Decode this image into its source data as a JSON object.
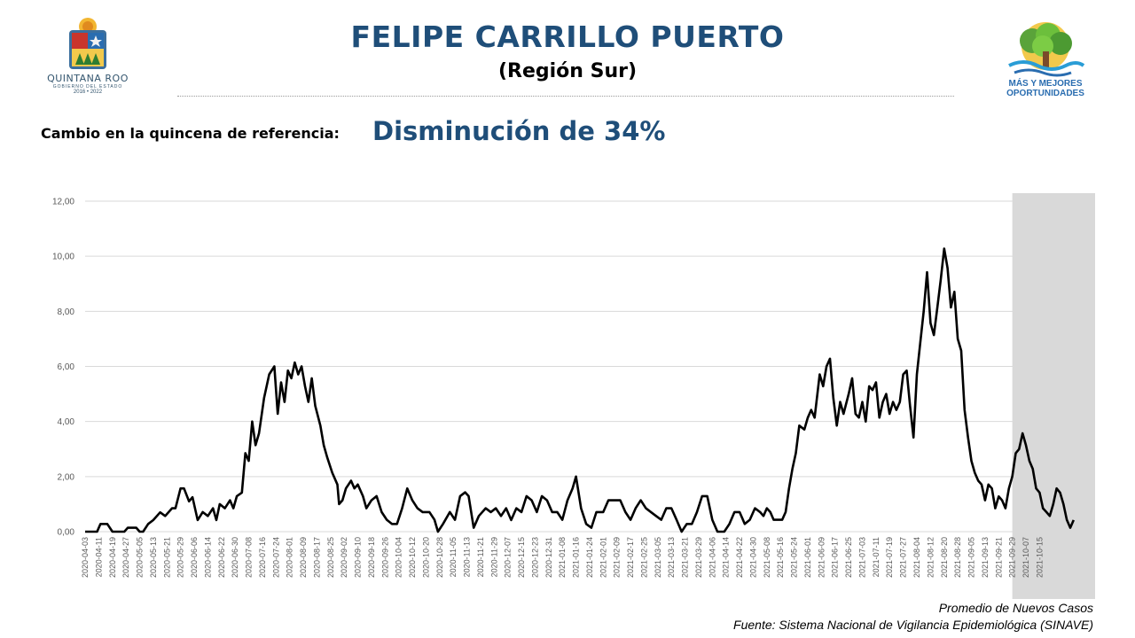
{
  "header": {
    "title": "FELIPE CARRILLO PUERTO",
    "subtitle": "(Región Sur)",
    "logo_left": {
      "name": "QUINTANA ROO",
      "line2": "GOBIERNO DEL ESTADO",
      "years": "2016 • 2022"
    },
    "logo_right": {
      "line1": "MÁS Y MEJORES",
      "line2": "OPORTUNIDADES"
    }
  },
  "summary": {
    "label": "Cambio en la quincena de referencia:",
    "value": "Disminución de 34%"
  },
  "footer": {
    "line1": "Promedio de Nuevos Casos",
    "line2": "Fuente: Sistema Nacional de Vigilancia Epidemiológica (SINAVE)"
  },
  "colors": {
    "title": "#1f4e79",
    "line": "#000000",
    "shade": "#d9d9d9",
    "grid": "#d9d9d9"
  },
  "chart_data": {
    "type": "line",
    "x_start": "2020-04-03",
    "x_end": "2021-10-20",
    "shaded_from": "2021-09-29",
    "ylim": [
      0,
      12
    ],
    "yticks": [
      "0,00",
      "2,00",
      "4,00",
      "6,00",
      "8,00",
      "10,00",
      "12,00"
    ],
    "xtick_labels": [
      "2020-04-03",
      "2020-04-11",
      "2020-04-19",
      "2020-04-27",
      "2020-05-05",
      "2020-05-13",
      "2020-05-21",
      "2020-05-29",
      "2020-06-06",
      "2020-06-14",
      "2020-06-22",
      "2020-06-30",
      "2020-07-08",
      "2020-07-16",
      "2020-07-24",
      "2020-08-01",
      "2020-08-09",
      "2020-08-17",
      "2020-08-25",
      "2020-09-02",
      "2020-09-10",
      "2020-09-18",
      "2020-09-26",
      "2020-10-04",
      "2020-10-12",
      "2020-10-20",
      "2020-10-28",
      "2020-11-05",
      "2020-11-13",
      "2020-11-21",
      "2020-11-29",
      "2020-12-07",
      "2020-12-15",
      "2020-12-23",
      "2020-12-31",
      "2021-01-08",
      "2021-01-16",
      "2021-01-24",
      "2021-02-01",
      "2021-02-09",
      "2021-02-17",
      "2021-02-25",
      "2021-03-05",
      "2021-03-13",
      "2021-03-21",
      "2021-03-29",
      "2021-04-06",
      "2021-04-14",
      "2021-04-22",
      "2021-04-30",
      "2021-05-08",
      "2021-05-16",
      "2021-05-24",
      "2021-06-01",
      "2021-06-09",
      "2021-06-17",
      "2021-06-25",
      "2021-07-03",
      "2021-07-11",
      "2021-07-19",
      "2021-07-27",
      "2021-08-04",
      "2021-08-12",
      "2021-08-20",
      "2021-08-28",
      "2021-09-05",
      "2021-09-13",
      "2021-09-21",
      "2021-09-29",
      "2021-10-07",
      "2021-10-15"
    ],
    "series": [
      {
        "points": [
          [
            "2020-04-03",
            0.0
          ],
          [
            "2020-04-10",
            0.0
          ],
          [
            "2020-04-12",
            0.28
          ],
          [
            "2020-04-16",
            0.28
          ],
          [
            "2020-04-19",
            0.0
          ],
          [
            "2020-04-26",
            0.0
          ],
          [
            "2020-04-28",
            0.14
          ],
          [
            "2020-05-03",
            0.14
          ],
          [
            "2020-05-05",
            0.0
          ],
          [
            "2020-05-07",
            0.0
          ],
          [
            "2020-05-10",
            0.28
          ],
          [
            "2020-05-13",
            0.42
          ],
          [
            "2020-05-17",
            0.7
          ],
          [
            "2020-05-20",
            0.57
          ],
          [
            "2020-05-24",
            0.85
          ],
          [
            "2020-05-26",
            0.85
          ],
          [
            "2020-05-29",
            1.57
          ],
          [
            "2020-05-31",
            1.57
          ],
          [
            "2020-06-03",
            1.1
          ],
          [
            "2020-06-05",
            1.25
          ],
          [
            "2020-06-08",
            0.42
          ],
          [
            "2020-06-11",
            0.71
          ],
          [
            "2020-06-14",
            0.57
          ],
          [
            "2020-06-17",
            0.85
          ],
          [
            "2020-06-19",
            0.42
          ],
          [
            "2020-06-21",
            1.0
          ],
          [
            "2020-06-24",
            0.85
          ],
          [
            "2020-06-27",
            1.14
          ],
          [
            "2020-06-29",
            0.85
          ],
          [
            "2020-07-01",
            1.29
          ],
          [
            "2020-07-04",
            1.42
          ],
          [
            "2020-07-06",
            2.85
          ],
          [
            "2020-07-08",
            2.57
          ],
          [
            "2020-07-10",
            4.0
          ],
          [
            "2020-07-12",
            3.14
          ],
          [
            "2020-07-14",
            3.57
          ],
          [
            "2020-07-17",
            4.85
          ],
          [
            "2020-07-20",
            5.71
          ],
          [
            "2020-07-23",
            6.0
          ],
          [
            "2020-07-25",
            4.28
          ],
          [
            "2020-07-27",
            5.42
          ],
          [
            "2020-07-29",
            4.71
          ],
          [
            "2020-07-31",
            5.85
          ],
          [
            "2020-08-02",
            5.57
          ],
          [
            "2020-08-04",
            6.14
          ],
          [
            "2020-08-06",
            5.71
          ],
          [
            "2020-08-08",
            6.0
          ],
          [
            "2020-08-10",
            5.28
          ],
          [
            "2020-08-12",
            4.71
          ],
          [
            "2020-08-14",
            5.57
          ],
          [
            "2020-08-16",
            4.57
          ],
          [
            "2020-08-19",
            3.85
          ],
          [
            "2020-08-21",
            3.14
          ],
          [
            "2020-08-23",
            2.71
          ],
          [
            "2020-08-26",
            2.14
          ],
          [
            "2020-08-29",
            1.71
          ],
          [
            "2020-08-30",
            1.0
          ],
          [
            "2020-09-01",
            1.14
          ],
          [
            "2020-09-03",
            1.57
          ],
          [
            "2020-09-06",
            1.85
          ],
          [
            "2020-09-08",
            1.57
          ],
          [
            "2020-09-10",
            1.71
          ],
          [
            "2020-09-13",
            1.29
          ],
          [
            "2020-09-15",
            0.85
          ],
          [
            "2020-09-18",
            1.14
          ],
          [
            "2020-09-21",
            1.29
          ],
          [
            "2020-09-24",
            0.71
          ],
          [
            "2020-09-27",
            0.43
          ],
          [
            "2020-09-30",
            0.28
          ],
          [
            "2020-10-03",
            0.28
          ],
          [
            "2020-10-06",
            0.85
          ],
          [
            "2020-10-09",
            1.57
          ],
          [
            "2020-10-12",
            1.14
          ],
          [
            "2020-10-15",
            0.85
          ],
          [
            "2020-10-18",
            0.71
          ],
          [
            "2020-10-22",
            0.71
          ],
          [
            "2020-10-25",
            0.43
          ],
          [
            "2020-10-27",
            0.0
          ],
          [
            "2020-10-30",
            0.28
          ],
          [
            "2020-11-03",
            0.71
          ],
          [
            "2020-11-06",
            0.43
          ],
          [
            "2020-11-09",
            1.29
          ],
          [
            "2020-11-12",
            1.43
          ],
          [
            "2020-11-14",
            1.29
          ],
          [
            "2020-11-17",
            0.14
          ],
          [
            "2020-11-20",
            0.57
          ],
          [
            "2020-11-24",
            0.85
          ],
          [
            "2020-11-27",
            0.71
          ],
          [
            "2020-11-30",
            0.85
          ],
          [
            "2020-12-03",
            0.57
          ],
          [
            "2020-12-06",
            0.85
          ],
          [
            "2020-12-09",
            0.42
          ],
          [
            "2020-12-12",
            0.85
          ],
          [
            "2020-12-15",
            0.71
          ],
          [
            "2020-12-18",
            1.29
          ],
          [
            "2020-12-21",
            1.14
          ],
          [
            "2020-12-24",
            0.71
          ],
          [
            "2020-12-27",
            1.29
          ],
          [
            "2020-12-30",
            1.14
          ],
          [
            "2021-01-02",
            0.71
          ],
          [
            "2021-01-05",
            0.71
          ],
          [
            "2021-01-08",
            0.43
          ],
          [
            "2021-01-11",
            1.14
          ],
          [
            "2021-01-14",
            1.57
          ],
          [
            "2021-01-16",
            2.0
          ],
          [
            "2021-01-19",
            0.85
          ],
          [
            "2021-01-22",
            0.28
          ],
          [
            "2021-01-25",
            0.14
          ],
          [
            "2021-01-28",
            0.71
          ],
          [
            "2021-02-01",
            0.71
          ],
          [
            "2021-02-04",
            1.14
          ],
          [
            "2021-02-07",
            1.14
          ],
          [
            "2021-02-11",
            1.14
          ],
          [
            "2021-02-14",
            0.71
          ],
          [
            "2021-02-17",
            0.43
          ],
          [
            "2021-02-20",
            0.85
          ],
          [
            "2021-02-23",
            1.14
          ],
          [
            "2021-02-26",
            0.85
          ],
          [
            "2021-03-01",
            0.71
          ],
          [
            "2021-03-04",
            0.57
          ],
          [
            "2021-03-07",
            0.43
          ],
          [
            "2021-03-10",
            0.85
          ],
          [
            "2021-03-13",
            0.85
          ],
          [
            "2021-03-16",
            0.43
          ],
          [
            "2021-03-19",
            0.0
          ],
          [
            "2021-03-22",
            0.28
          ],
          [
            "2021-03-25",
            0.28
          ],
          [
            "2021-03-28",
            0.71
          ],
          [
            "2021-03-31",
            1.29
          ],
          [
            "2021-04-03",
            1.29
          ],
          [
            "2021-04-06",
            0.43
          ],
          [
            "2021-04-09",
            0.0
          ],
          [
            "2021-04-13",
            0.0
          ],
          [
            "2021-04-16",
            0.28
          ],
          [
            "2021-04-19",
            0.71
          ],
          [
            "2021-04-22",
            0.71
          ],
          [
            "2021-04-25",
            0.28
          ],
          [
            "2021-04-28",
            0.43
          ],
          [
            "2021-05-01",
            0.85
          ],
          [
            "2021-05-04",
            0.71
          ],
          [
            "2021-05-06",
            0.57
          ],
          [
            "2021-05-08",
            0.85
          ],
          [
            "2021-05-10",
            0.71
          ],
          [
            "2021-05-12",
            0.43
          ],
          [
            "2021-05-17",
            0.43
          ],
          [
            "2021-05-19",
            0.71
          ],
          [
            "2021-05-21",
            1.57
          ],
          [
            "2021-05-23",
            2.29
          ],
          [
            "2021-05-25",
            2.85
          ],
          [
            "2021-05-27",
            3.85
          ],
          [
            "2021-05-30",
            3.71
          ],
          [
            "2021-06-01",
            4.14
          ],
          [
            "2021-06-03",
            4.42
          ],
          [
            "2021-06-05",
            4.14
          ],
          [
            "2021-06-08",
            5.71
          ],
          [
            "2021-06-10",
            5.28
          ],
          [
            "2021-06-12",
            6.0
          ],
          [
            "2021-06-14",
            6.28
          ],
          [
            "2021-06-16",
            4.85
          ],
          [
            "2021-06-18",
            3.85
          ],
          [
            "2021-06-20",
            4.71
          ],
          [
            "2021-06-22",
            4.28
          ],
          [
            "2021-06-25",
            5.0
          ],
          [
            "2021-06-27",
            5.57
          ],
          [
            "2021-06-29",
            4.28
          ],
          [
            "2021-07-01",
            4.14
          ],
          [
            "2021-07-03",
            4.71
          ],
          [
            "2021-07-05",
            4.0
          ],
          [
            "2021-07-07",
            5.28
          ],
          [
            "2021-07-09",
            5.14
          ],
          [
            "2021-07-11",
            5.42
          ],
          [
            "2021-07-13",
            4.14
          ],
          [
            "2021-07-15",
            4.71
          ],
          [
            "2021-07-17",
            5.0
          ],
          [
            "2021-07-19",
            4.28
          ],
          [
            "2021-07-21",
            4.71
          ],
          [
            "2021-07-23",
            4.42
          ],
          [
            "2021-07-25",
            4.71
          ],
          [
            "2021-07-27",
            5.71
          ],
          [
            "2021-07-29",
            5.85
          ],
          [
            "2021-07-31",
            4.57
          ],
          [
            "2021-08-02",
            3.42
          ],
          [
            "2021-08-04",
            5.71
          ],
          [
            "2021-08-06",
            6.85
          ],
          [
            "2021-08-08",
            8.0
          ],
          [
            "2021-08-10",
            9.42
          ],
          [
            "2021-08-12",
            7.57
          ],
          [
            "2021-08-14",
            7.14
          ],
          [
            "2021-08-16",
            8.14
          ],
          [
            "2021-08-18",
            9.14
          ],
          [
            "2021-08-20",
            10.28
          ],
          [
            "2021-08-22",
            9.57
          ],
          [
            "2021-08-24",
            8.14
          ],
          [
            "2021-08-26",
            8.71
          ],
          [
            "2021-08-28",
            7.0
          ],
          [
            "2021-08-30",
            6.57
          ],
          [
            "2021-09-01",
            4.42
          ],
          [
            "2021-09-03",
            3.42
          ],
          [
            "2021-09-05",
            2.57
          ],
          [
            "2021-09-07",
            2.14
          ],
          [
            "2021-09-09",
            1.85
          ],
          [
            "2021-09-11",
            1.71
          ],
          [
            "2021-09-13",
            1.14
          ],
          [
            "2021-09-15",
            1.71
          ],
          [
            "2021-09-17",
            1.57
          ],
          [
            "2021-09-19",
            0.85
          ],
          [
            "2021-09-21",
            1.28
          ],
          [
            "2021-09-23",
            1.14
          ],
          [
            "2021-09-25",
            0.85
          ],
          [
            "2021-09-27",
            1.57
          ],
          [
            "2021-09-29",
            2.0
          ],
          [
            "2021-10-01",
            2.85
          ],
          [
            "2021-10-03",
            3.0
          ],
          [
            "2021-10-05",
            3.57
          ],
          [
            "2021-10-07",
            3.14
          ],
          [
            "2021-10-09",
            2.57
          ],
          [
            "2021-10-11",
            2.28
          ],
          [
            "2021-10-13",
            1.57
          ],
          [
            "2021-10-15",
            1.42
          ],
          [
            "2021-10-17",
            0.85
          ],
          [
            "2021-10-19",
            0.71
          ],
          [
            "2021-10-21",
            0.57
          ],
          [
            "2021-10-23",
            1.0
          ],
          [
            "2021-10-25",
            1.57
          ],
          [
            "2021-10-27",
            1.42
          ],
          [
            "2021-10-29",
            1.0
          ],
          [
            "2021-10-31",
            0.43
          ],
          [
            "2021-11-02",
            0.14
          ],
          [
            "2021-11-04",
            0.42
          ]
        ]
      }
    ]
  }
}
